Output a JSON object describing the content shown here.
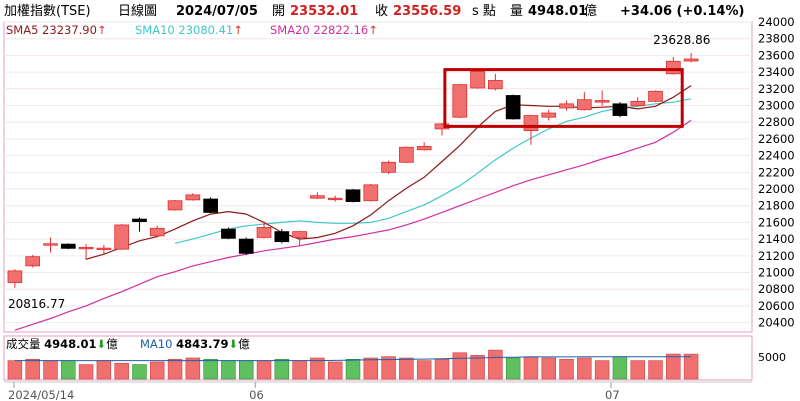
{
  "header": {
    "index_name": "加權指數(TSE)",
    "period": "日線圖",
    "date": "2024/07/05",
    "open_label": "開",
    "open_value": "23532.01",
    "close_label": "收",
    "close_value": "23556.59",
    "unit_label": "s 點",
    "volume_label": "量",
    "volume_value": "4948.01",
    "volume_unit": "億",
    "change": "+34.06 (+0.14%)"
  },
  "legend": {
    "sma5": "SMA5 23237.90",
    "sma10": "SMA10 23080.41",
    "sma20": "SMA20 22822.16",
    "sma_arrow": "↑"
  },
  "annotations": {
    "high_label": "23628.86",
    "low_label": "20816.77"
  },
  "volume_panel": {
    "label": "成交量",
    "value": "4948.01",
    "down_arrow": "⬇",
    "unit": "億",
    "ma_label": "MA10",
    "ma_value": "4843.79",
    "tick": "5000"
  },
  "colors": {
    "up": "#f07070",
    "down": "#000000",
    "up_stroke": "#e03030",
    "sma5": "#8b1a1a",
    "sma10": "#40c8c8",
    "sma20": "#d030a0",
    "vol_up": "#f07070",
    "vol_down": "#60c060",
    "highlight_box": "#c00000"
  },
  "chart_data": {
    "type": "candlestick",
    "ylim": [
      20300,
      24000
    ],
    "yticks": [
      "24000",
      "23800",
      "23600",
      "23400",
      "23200",
      "23000",
      "22800",
      "22600",
      "22400",
      "22200",
      "22000",
      "21800",
      "21600",
      "21400",
      "21200",
      "21000",
      "20800",
      "20600",
      "20400"
    ],
    "x_labels": [
      "2024/05/14",
      "06",
      "07"
    ],
    "x_label_index": [
      0,
      14,
      34
    ],
    "candles": [
      {
        "open": 20880,
        "close": 21020,
        "high": 21040,
        "low": 20817
      },
      {
        "open": 21080,
        "close": 21190,
        "high": 21210,
        "low": 21060
      },
      {
        "open": 21340,
        "close": 21345,
        "high": 21420,
        "low": 21240
      },
      {
        "open": 21340,
        "close": 21290,
        "high": 21350,
        "low": 21280
      },
      {
        "open": 21300,
        "close": 21302,
        "high": 21340,
        "low": 21150
      },
      {
        "open": 21290,
        "close": 21292,
        "high": 21330,
        "low": 21230
      },
      {
        "open": 21280,
        "close": 21570,
        "high": 21580,
        "low": 21270
      },
      {
        "open": 21640,
        "close": 21610,
        "high": 21660,
        "low": 21490
      },
      {
        "open": 21440,
        "close": 21530,
        "high": 21560,
        "low": 21420
      },
      {
        "open": 21750,
        "close": 21860,
        "high": 21870,
        "low": 21740
      },
      {
        "open": 21870,
        "close": 21930,
        "high": 21950,
        "low": 21860
      },
      {
        "open": 21880,
        "close": 21720,
        "high": 21900,
        "low": 21710
      },
      {
        "open": 21520,
        "close": 21410,
        "high": 21540,
        "low": 21400
      },
      {
        "open": 21400,
        "close": 21230,
        "high": 21420,
        "low": 21210
      },
      {
        "open": 21420,
        "close": 21540,
        "high": 21610,
        "low": 21410
      },
      {
        "open": 21490,
        "close": 21370,
        "high": 21520,
        "low": 21350
      },
      {
        "open": 21420,
        "close": 21490,
        "high": 21500,
        "low": 21320
      },
      {
        "open": 21890,
        "close": 21920,
        "high": 21960,
        "low": 21880
      },
      {
        "open": 21880,
        "close": 21890,
        "high": 21920,
        "low": 21850
      },
      {
        "open": 21990,
        "close": 21850,
        "high": 22000,
        "low": 21840
      },
      {
        "open": 21860,
        "close": 22050,
        "high": 22060,
        "low": 21850
      },
      {
        "open": 22200,
        "close": 22320,
        "high": 22340,
        "low": 22180
      },
      {
        "open": 22320,
        "close": 22500,
        "high": 22510,
        "low": 22310
      },
      {
        "open": 22470,
        "close": 22510,
        "high": 22560,
        "low": 22460
      },
      {
        "open": 22720,
        "close": 22780,
        "high": 22790,
        "low": 22640
      },
      {
        "open": 22860,
        "close": 23250,
        "high": 23260,
        "low": 22850
      },
      {
        "open": 23210,
        "close": 23410,
        "high": 23420,
        "low": 23200
      },
      {
        "open": 23200,
        "close": 23300,
        "high": 23380,
        "low": 23180
      },
      {
        "open": 23120,
        "close": 22840,
        "high": 23130,
        "low": 22830
      },
      {
        "open": 22700,
        "close": 22880,
        "high": 22890,
        "low": 22530
      },
      {
        "open": 22860,
        "close": 22910,
        "high": 22950,
        "low": 22820
      },
      {
        "open": 22970,
        "close": 23020,
        "high": 23060,
        "low": 22940
      },
      {
        "open": 22950,
        "close": 23070,
        "high": 23160,
        "low": 22940
      },
      {
        "open": 23040,
        "close": 23060,
        "high": 23180,
        "low": 23000
      },
      {
        "open": 23020,
        "close": 22880,
        "high": 23040,
        "low": 22860
      },
      {
        "open": 23000,
        "close": 23050,
        "high": 23100,
        "low": 22990
      },
      {
        "open": 23050,
        "close": 23170,
        "high": 23180,
        "low": 23040
      },
      {
        "open": 23380,
        "close": 23530,
        "high": 23580,
        "low": 23370
      },
      {
        "open": 23532,
        "close": 23557,
        "high": 23629,
        "low": 23520
      }
    ],
    "sma5": [
      null,
      null,
      null,
      null,
      21160,
      21220,
      21300,
      21380,
      21430,
      21520,
      21620,
      21700,
      21730,
      21700,
      21600,
      21480,
      21400,
      21420,
      21470,
      21560,
      21690,
      21860,
      22010,
      22140,
      22330,
      22520,
      22740,
      22930,
      23010,
      23000,
      22990,
      22990,
      22970,
      22980,
      22990,
      22960,
      22990,
      23100,
      23238
    ],
    "sma10": [
      null,
      null,
      null,
      null,
      null,
      null,
      null,
      null,
      null,
      21350,
      21400,
      21460,
      21520,
      21560,
      21580,
      21600,
      21620,
      21600,
      21590,
      21590,
      21600,
      21650,
      21730,
      21810,
      21920,
      22040,
      22190,
      22350,
      22490,
      22610,
      22720,
      22810,
      22860,
      22930,
      22970,
      22990,
      23020,
      23040,
      23080
    ],
    "sma20": [
      20310,
      20380,
      20450,
      20530,
      20600,
      20690,
      20770,
      20860,
      20950,
      21010,
      21080,
      21130,
      21180,
      21220,
      21260,
      21290,
      21320,
      21360,
      21400,
      21430,
      21470,
      21510,
      21570,
      21640,
      21720,
      21800,
      21880,
      21960,
      22040,
      22110,
      22170,
      22230,
      22290,
      22360,
      22420,
      22490,
      22560,
      22680,
      22822
    ],
    "volumes": [
      4700,
      4750,
      4700,
      4700,
      4550,
      4700,
      4600,
      4550,
      4650,
      4750,
      4800,
      4750,
      4700,
      4700,
      4700,
      4750,
      4700,
      4800,
      4650,
      4750,
      4800,
      4850,
      4800,
      4700,
      4750,
      5000,
      4900,
      5100,
      4800,
      4850,
      4800,
      4750,
      4800,
      4700,
      4850,
      4700,
      4700,
      4950,
      4948
    ],
    "volume_ma10": [
      4700,
      4700,
      4700,
      4700,
      4700,
      4700,
      4700,
      4700,
      4700,
      4700,
      4700,
      4700,
      4700,
      4700,
      4700,
      4700,
      4700,
      4700,
      4710,
      4720,
      4730,
      4740,
      4750,
      4760,
      4770,
      4790,
      4800,
      4820,
      4830,
      4840,
      4840,
      4840,
      4845,
      4845,
      4845,
      4844,
      4844,
      4844,
      4844
    ],
    "volume_ylim": [
      4000,
      5600
    ],
    "highlight_range": [
      25,
      37
    ],
    "highlight_ylim": [
      22750,
      23430
    ]
  }
}
